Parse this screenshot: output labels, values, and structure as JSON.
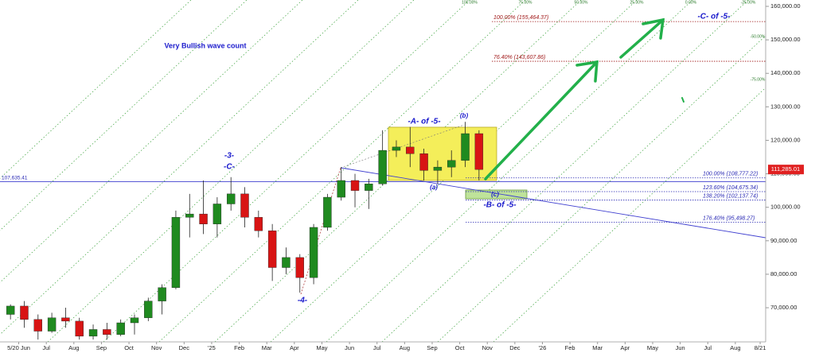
{
  "chart_data": {
    "type": "candlestick",
    "title": "Very Bullish wave count",
    "x": [
      -0.3,
      0.2,
      0.7,
      1.2,
      1.7,
      2.2,
      2.7,
      3.2,
      3.7,
      4.2,
      4.7,
      5.2,
      5.7,
      6.2,
      6.7,
      7.2,
      7.7,
      8.2,
      8.7,
      9.2,
      9.7,
      10.2,
      10.7,
      11.2,
      11.7,
      12.2,
      12.7,
      13.2,
      13.7,
      14.2,
      14.7,
      15.2,
      15.7,
      16.2,
      16.7
    ],
    "open": [
      68000,
      70500,
      66500,
      63000,
      67000,
      66000,
      61500,
      63500,
      62000,
      65500,
      67000,
      72000,
      76000,
      97000,
      98000,
      95000,
      101000,
      104000,
      97000,
      93000,
      82000,
      85000,
      79000,
      94000,
      103000,
      108000,
      105000,
      107000,
      117000,
      118000,
      116000,
      111000,
      112000,
      114000,
      122000
    ],
    "high": [
      71000,
      72000,
      68000,
      68500,
      70000,
      67000,
      65000,
      65500,
      66500,
      68000,
      73000,
      77000,
      99000,
      104000,
      108000,
      103000,
      109000,
      106000,
      99000,
      95000,
      88000,
      86000,
      95000,
      104000,
      112000,
      110000,
      108500,
      123000,
      120000,
      124000,
      117500,
      114000,
      117000,
      125500,
      123000
    ],
    "low": [
      66500,
      64000,
      60500,
      62500,
      64000,
      60500,
      60500,
      60500,
      61500,
      62000,
      66000,
      68000,
      75500,
      91000,
      92000,
      91000,
      99000,
      94000,
      91000,
      78000,
      80000,
      74500,
      77000,
      93000,
      102000,
      100000,
      99500,
      106500,
      115000,
      112000,
      108000,
      107000,
      109000,
      112000,
      108000
    ],
    "close": [
      70500,
      66500,
      63000,
      67000,
      66000,
      61500,
      63500,
      62000,
      65500,
      67000,
      72000,
      76000,
      97000,
      98000,
      95000,
      101000,
      104000,
      97000,
      93000,
      82000,
      85000,
      79000,
      94000,
      103000,
      108000,
      105000,
      107000,
      117000,
      118000,
      116000,
      111000,
      112000,
      114000,
      122000,
      111285.01
    ],
    "up_color": "#1f8a1f",
    "down_color": "#d81414",
    "xlim": [
      -0.68,
      27.1
    ],
    "xticks": [
      {
        "value": 0,
        "label": "5/20 Jun"
      },
      {
        "value": 1,
        "label": "Jul"
      },
      {
        "value": 2,
        "label": "Aug"
      },
      {
        "value": 3,
        "label": "Sep"
      },
      {
        "value": 4,
        "label": "Oct"
      },
      {
        "value": 5,
        "label": "Nov"
      },
      {
        "value": 6,
        "label": "Dec"
      },
      {
        "value": 7,
        "label": "'25"
      },
      {
        "value": 8,
        "label": "Feb"
      },
      {
        "value": 9,
        "label": "Mar"
      },
      {
        "value": 10,
        "label": "Apr"
      },
      {
        "value": 11,
        "label": "May"
      },
      {
        "value": 12,
        "label": "Jun"
      },
      {
        "value": 13,
        "label": "Jul"
      },
      {
        "value": 14,
        "label": "Aug"
      },
      {
        "value": 15,
        "label": "Sep"
      },
      {
        "value": 16,
        "label": "Oct"
      },
      {
        "value": 17,
        "label": "Nov"
      },
      {
        "value": 18,
        "label": "Dec"
      },
      {
        "value": 19,
        "label": "'26"
      },
      {
        "value": 20,
        "label": "Feb"
      },
      {
        "value": 21,
        "label": "Mar"
      },
      {
        "value": 22,
        "label": "Apr"
      },
      {
        "value": 23,
        "label": "May"
      },
      {
        "value": 24,
        "label": "Jun"
      },
      {
        "value": 25,
        "label": "Jul"
      },
      {
        "value": 26,
        "label": "Aug"
      },
      {
        "value": 26.9,
        "label": "8/21"
      }
    ],
    "ylim": [
      59800,
      161900
    ],
    "yticks": [
      {
        "value": 70000,
        "label": "70,000.00"
      },
      {
        "value": 80000,
        "label": "80,000.00"
      },
      {
        "value": 90000,
        "label": "90,000.00"
      },
      {
        "value": 100000,
        "label": "100,000.00"
      },
      {
        "value": 110000,
        "label": "110,000.00"
      },
      {
        "value": 120000,
        "label": "120,000.00"
      },
      {
        "value": 130000,
        "label": "130,000.00"
      },
      {
        "value": 140000,
        "label": "140,000.00"
      },
      {
        "value": 150000,
        "label": "150,000.00"
      },
      {
        "value": 160000,
        "label": "160,000.00"
      }
    ],
    "last_label": {
      "value": 111285.01,
      "label": "111,285.01"
    },
    "hline": {
      "value": 107635.41,
      "label": "107,635.41"
    },
    "levels": [
      {
        "value": 155464.37,
        "label": "100.00% (155,464.37)",
        "color": "#a01818"
      },
      {
        "value": 143607.86,
        "label": "76.40% (143,607.86)",
        "color": "#a01818"
      },
      {
        "value": 108777.22,
        "label": "100.00% (108,777.22)",
        "color": "#2828b4"
      },
      {
        "value": 104675.34,
        "label": "123.60% (104,675.34)",
        "color": "#2828b4"
      },
      {
        "value": 102137.74,
        "label": "138.20% (102,137.74)",
        "color": "#2828b4"
      },
      {
        "value": 95498.27,
        "label": "176.40% (95,498.27)",
        "color": "#2828b4"
      }
    ],
    "fan_labels": [
      "100.00%",
      "75.00%",
      "50.00%",
      "25.00%",
      "0.00%",
      "-25.00%",
      "-50.00%",
      "-75.00%"
    ],
    "annotations": [
      "-3-",
      "-C-",
      "-4-",
      "-A- of -5-",
      "(b)",
      "(a)",
      "(c)",
      "-B- of -5-",
      "-C- of -5-"
    ]
  }
}
